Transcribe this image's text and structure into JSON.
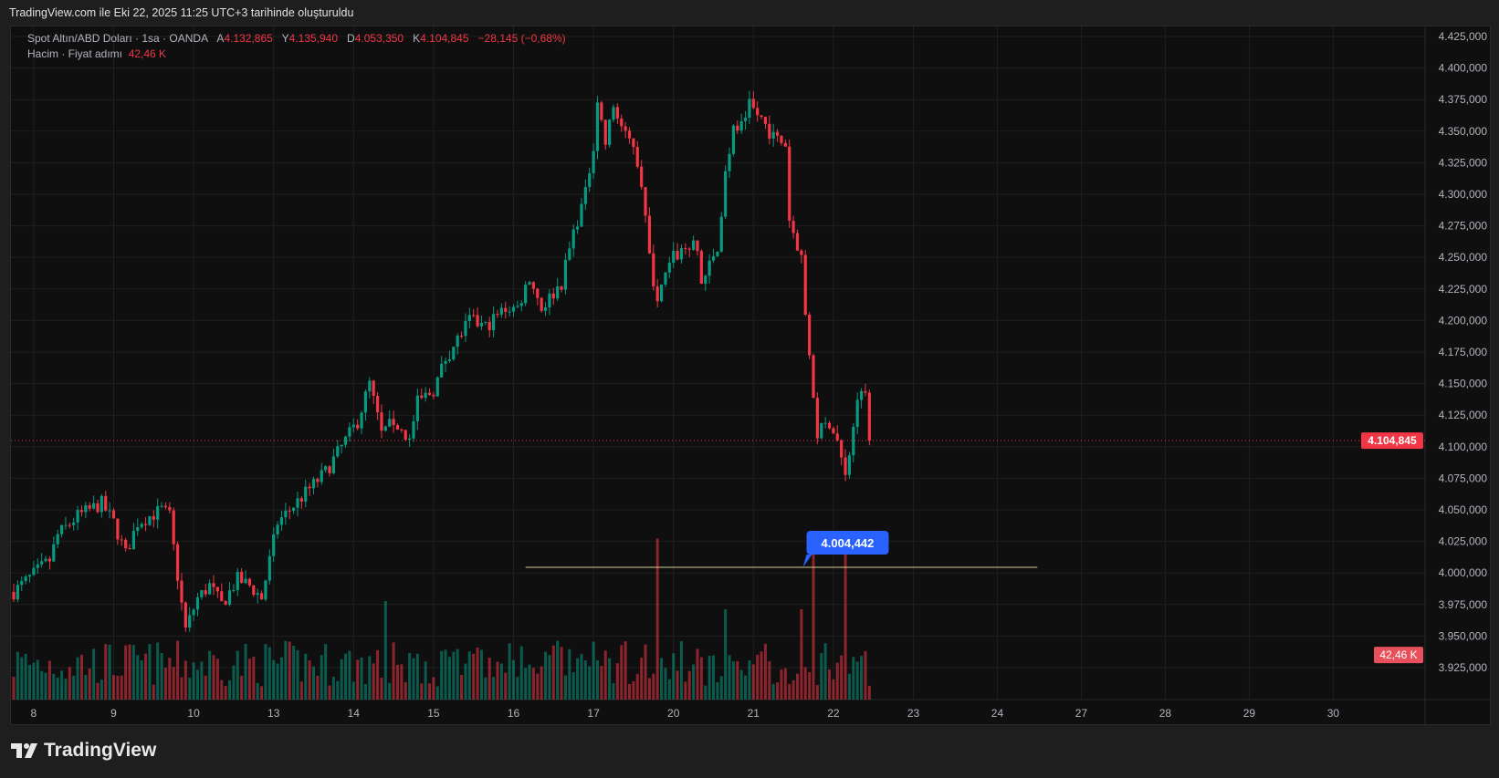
{
  "caption": "TradingView.com ile Eki 22, 2025 11:25 UTC+3 tarihinde oluşturuldu",
  "legend": {
    "symbol": "Spot Altın/ABD Doları · 1sa · OANDA",
    "open_label": "A",
    "open": "4.132,865",
    "high_label": "Y",
    "high": "4.135,940",
    "low_label": "D",
    "low": "4.053,350",
    "close_label": "K",
    "close": "4.104,845",
    "change": "−28,145 (−0,68%)",
    "volume_label": "Hacim · Fiyat adımı",
    "volume": "42,46 K"
  },
  "footer": {
    "brand": "TradingView"
  },
  "colors": {
    "up": "#089981",
    "down": "#f23645",
    "line": "#d9cf8f",
    "bubble": "#2962ff"
  },
  "chart_data": {
    "type": "candlestick",
    "title": "Spot Altın/ABD Doları · 1sa · OANDA",
    "ylim": [
      3915,
      4432
    ],
    "y_ticks": [
      "4.425,000",
      "4.400,000",
      "4.375,000",
      "4.350,000",
      "4.325,000",
      "4.300,000",
      "4.275,000",
      "4.250,000",
      "4.225,000",
      "4.200,000",
      "4.175,000",
      "4.150,000",
      "4.125,000",
      "4.100,000",
      "4.075,000",
      "4.050,000",
      "4.025,000",
      "4.000,000",
      "3.975,000",
      "3.950,000",
      "3.925,000"
    ],
    "y_tick_values": [
      4425,
      4400,
      4375,
      4350,
      4325,
      4300,
      4275,
      4250,
      4225,
      4200,
      4175,
      4150,
      4125,
      4100,
      4075,
      4050,
      4025,
      4000,
      3975,
      3950,
      3925
    ],
    "x_ticks": [
      "8",
      "9",
      "10",
      "13",
      "14",
      "15",
      "16",
      "17",
      "20",
      "21",
      "22",
      "23",
      "24",
      "27",
      "28",
      "29",
      "30"
    ],
    "x_tick_bars": [
      5,
      25,
      45,
      65,
      85,
      105,
      125,
      145,
      165,
      185,
      205,
      225,
      246,
      267,
      288,
      309,
      330
    ],
    "price_path": [
      [
        0,
        3985
      ],
      [
        9,
        4010
      ],
      [
        11,
        4030
      ],
      [
        16,
        4045
      ],
      [
        22,
        4055
      ],
      [
        25,
        4040
      ],
      [
        28,
        4015
      ],
      [
        31,
        4040
      ],
      [
        37,
        4050
      ],
      [
        39,
        4045
      ],
      [
        40,
        4020
      ],
      [
        42,
        3975
      ],
      [
        43,
        3955
      ],
      [
        46,
        3980
      ],
      [
        49,
        3990
      ],
      [
        52,
        3975
      ],
      [
        56,
        3995
      ],
      [
        59,
        3990
      ],
      [
        62,
        3980
      ],
      [
        64,
        4010
      ],
      [
        66,
        4040
      ],
      [
        72,
        4060
      ],
      [
        78,
        4080
      ],
      [
        82,
        4100
      ],
      [
        86,
        4120
      ],
      [
        89,
        4150
      ],
      [
        92,
        4110
      ],
      [
        95,
        4120
      ],
      [
        99,
        4105
      ],
      [
        101,
        4135
      ],
      [
        105,
        4145
      ],
      [
        108,
        4170
      ],
      [
        114,
        4200
      ],
      [
        118,
        4195
      ],
      [
        123,
        4210
      ],
      [
        126,
        4210
      ],
      [
        129,
        4235
      ],
      [
        132,
        4210
      ],
      [
        137,
        4230
      ],
      [
        140,
        4270
      ],
      [
        143,
        4300
      ],
      [
        145,
        4340
      ],
      [
        146,
        4375
      ],
      [
        148,
        4340
      ],
      [
        150,
        4370
      ],
      [
        153,
        4345
      ],
      [
        155,
        4340
      ],
      [
        157,
        4310
      ],
      [
        159,
        4250
      ],
      [
        161,
        4215
      ],
      [
        163,
        4235
      ],
      [
        165,
        4250
      ],
      [
        169,
        4260
      ],
      [
        171,
        4255
      ],
      [
        172,
        4230
      ],
      [
        176,
        4255
      ],
      [
        178,
        4320
      ],
      [
        180,
        4350
      ],
      [
        183,
        4355
      ],
      [
        184,
        4370
      ],
      [
        187,
        4360
      ],
      [
        190,
        4345
      ],
      [
        193,
        4340
      ],
      [
        194,
        4280
      ],
      [
        197,
        4250
      ],
      [
        198,
        4200
      ],
      [
        200,
        4140
      ],
      [
        201,
        4110
      ],
      [
        204,
        4120
      ],
      [
        206,
        4105
      ],
      [
        208,
        4075
      ],
      [
        210,
        4120
      ],
      [
        212,
        4150
      ],
      [
        213,
        4140
      ],
      [
        214,
        4104.845
      ]
    ],
    "volume_spikes": [
      [
        161,
        0.98
      ],
      [
        200,
        1.0
      ],
      [
        208,
        0.96
      ],
      [
        197,
        0.55
      ],
      [
        93,
        0.6
      ],
      [
        178,
        0.55
      ]
    ],
    "last_volume": "42,46 K",
    "current_price": 4104.845,
    "current_price_label": "4.104,845",
    "horizontal_line": {
      "price": 4004.442,
      "label": "4.004,442",
      "from_bar": 128,
      "to_bar": 256
    }
  }
}
